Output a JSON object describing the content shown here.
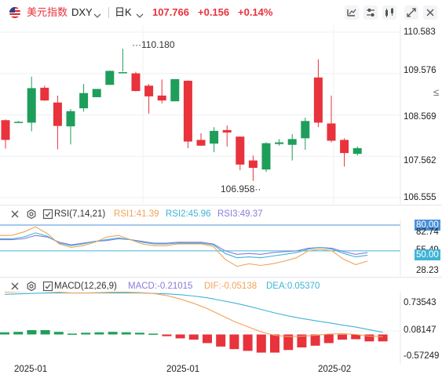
{
  "header": {
    "name": "美元指数",
    "code": "DXY",
    "period": "日K",
    "price": "107.766",
    "change": "+0.156",
    "change_pct": "+0.14%",
    "colors": {
      "up": "#e8323c",
      "down": "#1e9e5a"
    }
  },
  "toolbar": {
    "icons": [
      "candle-type-icon",
      "indicator-settings-icon",
      "drawing-tool-icon",
      "fullscreen-icon",
      "close-icon"
    ]
  },
  "main_chart": {
    "price_axis_labels": [
      "110.583",
      "109.576",
      "108.569",
      "107.562",
      "106.555"
    ],
    "high_label": "110.180",
    "low_label": "106.958",
    "collapse_glyph": "≤",
    "candles": [
      {
        "o": 108.44,
        "h": 108.46,
        "l": 107.75,
        "c": 107.96
      },
      {
        "o": 108.4,
        "h": 108.42,
        "l": 108.38,
        "c": 108.4
      },
      {
        "o": 108.38,
        "h": 109.5,
        "l": 108.17,
        "c": 109.22
      },
      {
        "o": 109.23,
        "h": 109.28,
        "l": 108.91,
        "c": 108.92
      },
      {
        "o": 108.87,
        "h": 109.04,
        "l": 107.73,
        "c": 108.3
      },
      {
        "o": 108.29,
        "h": 108.71,
        "l": 107.85,
        "c": 108.66
      },
      {
        "o": 108.73,
        "h": 109.32,
        "l": 108.65,
        "c": 109.1
      },
      {
        "o": 109.0,
        "h": 109.2,
        "l": 109.0,
        "c": 109.2
      },
      {
        "o": 109.3,
        "h": 109.65,
        "l": 109.3,
        "c": 109.64
      },
      {
        "o": 109.6,
        "h": 110.18,
        "l": 109.63,
        "c": 109.61
      },
      {
        "o": 109.58,
        "h": 109.62,
        "l": 109.14,
        "c": 109.15
      },
      {
        "o": 109.28,
        "h": 109.32,
        "l": 108.6,
        "c": 109.02
      },
      {
        "o": 109.04,
        "h": 109.43,
        "l": 108.85,
        "c": 108.92
      },
      {
        "o": 108.9,
        "h": 109.44,
        "l": 108.9,
        "c": 109.44
      },
      {
        "o": 109.4,
        "h": 109.41,
        "l": 107.76,
        "c": 107.92
      },
      {
        "o": 107.96,
        "h": 108.12,
        "l": 107.82,
        "c": 107.82
      },
      {
        "o": 107.87,
        "h": 108.27,
        "l": 107.66,
        "c": 108.18
      },
      {
        "o": 108.2,
        "h": 108.31,
        "l": 107.8,
        "c": 108.14
      },
      {
        "o": 108.04,
        "h": 108.04,
        "l": 107.22,
        "c": 107.36
      },
      {
        "o": 107.46,
        "h": 107.58,
        "l": 106.96,
        "c": 107.28
      },
      {
        "o": 107.24,
        "h": 107.9,
        "l": 107.18,
        "c": 107.88
      },
      {
        "o": 107.86,
        "h": 107.98,
        "l": 107.82,
        "c": 107.9
      },
      {
        "o": 107.84,
        "h": 108.1,
        "l": 107.46,
        "c": 107.98
      },
      {
        "o": 108.0,
        "h": 108.5,
        "l": 107.72,
        "c": 108.42
      },
      {
        "o": 109.48,
        "h": 109.92,
        "l": 108.27,
        "c": 108.38
      },
      {
        "o": 108.36,
        "h": 109.04,
        "l": 107.9,
        "c": 107.94
      },
      {
        "o": 107.96,
        "h": 108.0,
        "l": 107.31,
        "c": 107.64
      },
      {
        "o": 107.62,
        "h": 107.8,
        "l": 107.58,
        "c": 107.76
      }
    ]
  },
  "rsi_panel": {
    "title": "RSI(7,14,21)",
    "rsi1": "RSI1:41.39",
    "rsi2": "RSI2:45.96",
    "rsi3": "RSI3:49.37",
    "axis_labels": [
      "80.00",
      "82.74",
      "55.49",
      "50.00",
      "28.23"
    ],
    "series_rsi1": [
      68,
      68,
      72,
      78,
      70,
      58,
      54,
      56,
      60,
      66,
      68,
      63,
      58,
      56,
      56,
      58,
      58,
      58,
      55,
      40,
      32,
      35,
      33,
      35,
      38,
      42,
      50,
      52,
      50,
      40,
      34,
      38
    ],
    "series_rsi2": [
      64,
      64,
      66,
      71,
      67,
      59,
      56,
      58,
      61,
      63,
      65,
      63,
      60,
      58,
      58,
      59,
      59,
      59,
      57,
      47,
      42,
      43,
      42,
      44,
      46,
      48,
      52,
      54,
      52,
      47,
      43,
      45
    ],
    "series_rsi3": [
      63,
      63,
      64,
      68,
      66,
      60,
      57,
      59,
      61,
      62,
      64,
      63,
      61,
      59,
      59,
      60,
      60,
      60,
      58,
      50,
      46,
      47,
      46,
      48,
      49,
      50,
      53,
      54,
      53,
      49,
      46,
      48
    ]
  },
  "macd_panel": {
    "title": "MACD(12,26,9)",
    "macd": "MACD:-0.21015",
    "dif": "DIF:-0.05138",
    "dea": "DEA:0.05370",
    "axis_labels": [
      "0.73543",
      "0.08147",
      "-0.57249"
    ],
    "hist": [
      0.05,
      0.06,
      0.1,
      0.1,
      0.06,
      0.02,
      0.04,
      0.05,
      0.06,
      0.05,
      0.04,
      0.02,
      -0.04,
      -0.09,
      -0.12,
      -0.2,
      -0.28,
      -0.34,
      -0.38,
      -0.42,
      -0.42,
      -0.36,
      -0.3,
      -0.26,
      -0.2,
      -0.12,
      -0.11,
      -0.16,
      -0.16
    ],
    "dif_series": [
      0.98,
      0.99,
      1.0,
      1.0,
      0.98,
      0.96,
      0.96,
      0.97,
      0.98,
      0.98,
      0.97,
      0.95,
      0.9,
      0.82,
      0.72,
      0.6,
      0.45,
      0.3,
      0.18,
      0.06,
      -0.02,
      -0.05,
      -0.04,
      -0.02,
      0.01,
      0.02,
      0.0,
      -0.04,
      -0.05
    ],
    "dea_series": [
      0.93,
      0.94,
      0.95,
      0.96,
      0.96,
      0.96,
      0.96,
      0.96,
      0.96,
      0.96,
      0.96,
      0.95,
      0.94,
      0.92,
      0.89,
      0.85,
      0.79,
      0.73,
      0.66,
      0.58,
      0.5,
      0.43,
      0.37,
      0.32,
      0.27,
      0.22,
      0.17,
      0.11,
      0.05
    ]
  },
  "x_axis": {
    "labels": [
      "2025-01",
      "2025-01",
      "2025-02"
    ]
  }
}
